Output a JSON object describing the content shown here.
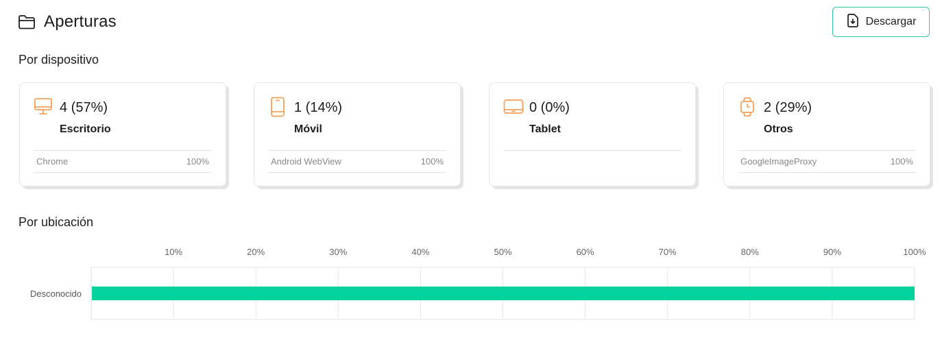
{
  "header": {
    "title": "Aperturas",
    "icon": "folder-icon",
    "download_label": "Descargar",
    "download_icon": "file-download-icon"
  },
  "sections": {
    "device_title": "Por dispositivo",
    "location_title": "Por ubicación"
  },
  "colors": {
    "accent_orange": "#f5a05a",
    "accent_teal": "#2fc7a4",
    "bar_green": "#05d39e"
  },
  "devices": [
    {
      "icon": "desktop-icon",
      "count": "4 (57%)",
      "label": "Escritorio",
      "browser": "Chrome",
      "browser_pct": "100%"
    },
    {
      "icon": "mobile-icon",
      "count": "1 (14%)",
      "label": "Móvil",
      "browser": "Android WebView",
      "browser_pct": "100%"
    },
    {
      "icon": "tablet-icon",
      "count": "0 (0%)",
      "label": "Tablet"
    },
    {
      "icon": "watch-icon",
      "count": "2 (29%)",
      "label": "Otros",
      "browser": "GoogleImageProxy",
      "browser_pct": "100%"
    }
  ],
  "chart_data": {
    "type": "bar",
    "orientation": "horizontal",
    "categories": [
      "Desconocido"
    ],
    "values": [
      100
    ],
    "xlim": [
      0,
      100
    ],
    "x_ticks": [
      "10%",
      "20%",
      "30%",
      "40%",
      "50%",
      "60%",
      "70%",
      "80%",
      "90%",
      "100%"
    ],
    "x_tick_values": [
      10,
      20,
      30,
      40,
      50,
      60,
      70,
      80,
      90,
      100
    ],
    "grid": true,
    "legend": "none"
  }
}
